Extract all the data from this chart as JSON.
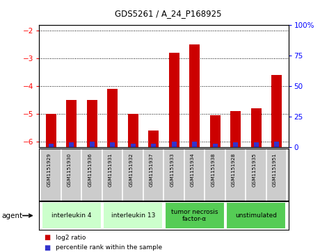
{
  "title": "GDS5261 / A_24_P168925",
  "samples": [
    "GSM1151929",
    "GSM1151930",
    "GSM1151936",
    "GSM1151931",
    "GSM1151932",
    "GSM1151937",
    "GSM1151933",
    "GSM1151934",
    "GSM1151938",
    "GSM1151928",
    "GSM1151935",
    "GSM1151951"
  ],
  "log2_ratios": [
    -5.0,
    -4.5,
    -4.5,
    -4.1,
    -5.0,
    -5.6,
    -2.8,
    -2.5,
    -5.05,
    -4.9,
    -4.8,
    -3.6
  ],
  "percentile_ranks": [
    3,
    4,
    5,
    4,
    3,
    3,
    5,
    5,
    3,
    4,
    4,
    5
  ],
  "bar_color": "#cc0000",
  "pct_color": "#3333cc",
  "ylim_left": [
    -6.2,
    -1.8
  ],
  "ylim_right": [
    0,
    100
  ],
  "yticks_left": [
    -6,
    -5,
    -4,
    -3,
    -2
  ],
  "yticks_right": [
    0,
    25,
    50,
    75,
    100
  ],
  "groups": [
    {
      "label": "interleukin 4",
      "start": 0,
      "end": 3,
      "color": "#ccffcc"
    },
    {
      "label": "interleukin 13",
      "start": 3,
      "end": 6,
      "color": "#ccffcc"
    },
    {
      "label": "tumor necrosis\nfactor-α",
      "start": 6,
      "end": 9,
      "color": "#55cc55"
    },
    {
      "label": "unstimulated",
      "start": 9,
      "end": 12,
      "color": "#55cc55"
    }
  ],
  "agent_label": "agent",
  "legend_items": [
    {
      "color": "#cc0000",
      "label": "log2 ratio"
    },
    {
      "color": "#3333cc",
      "label": "percentile rank within the sample"
    }
  ],
  "bar_width": 0.5,
  "grid_color": "#000000"
}
